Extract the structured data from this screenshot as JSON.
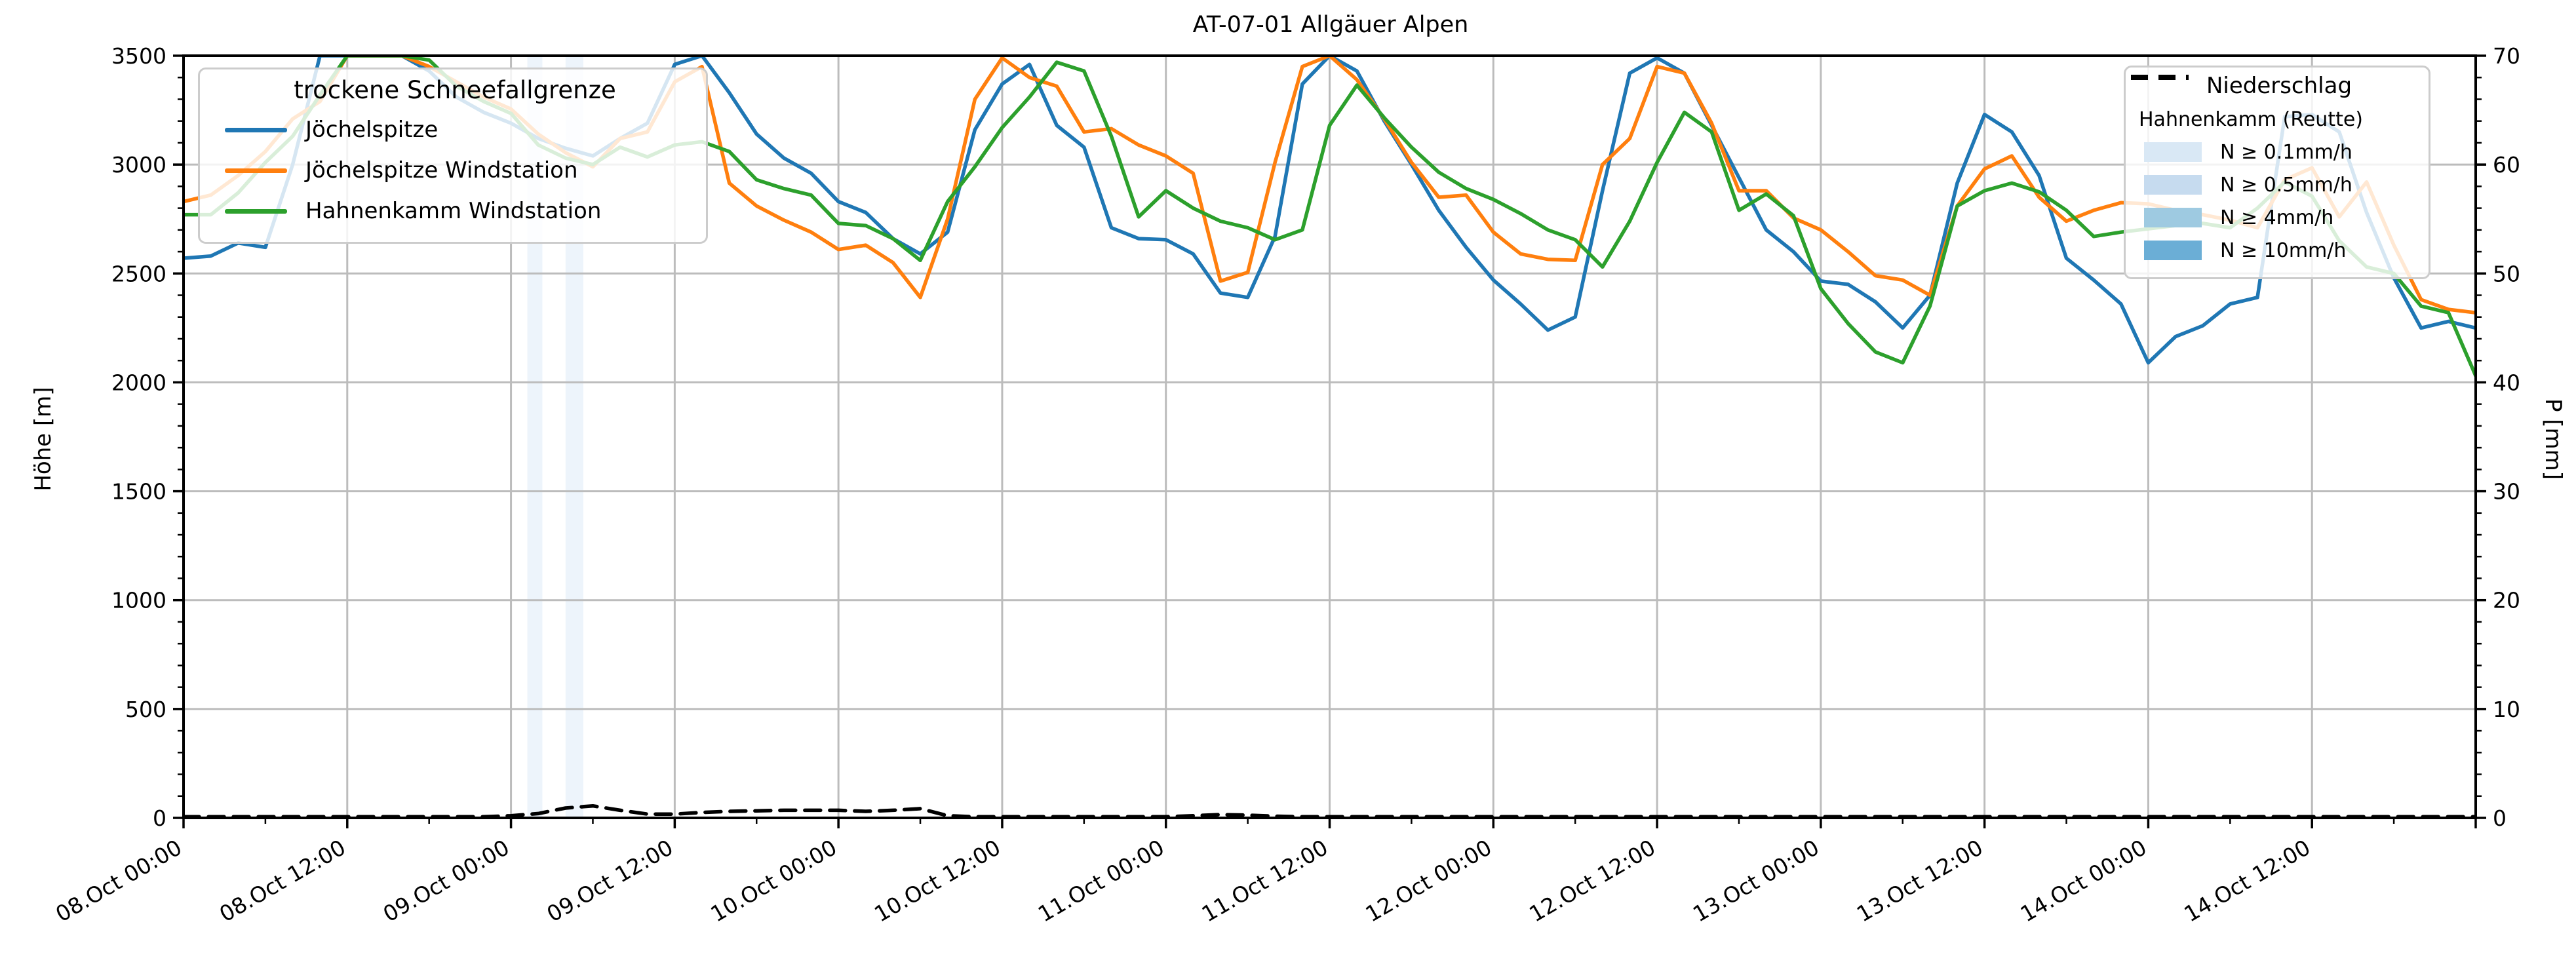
{
  "chart_data": {
    "type": "line",
    "title": "AT-07-01 Allgäuer Alpen",
    "ylabel_left": "Höhe [m]",
    "ylabel_right": "P [mm]",
    "ylim_left": [
      0,
      3500
    ],
    "ylim_right": [
      0,
      70
    ],
    "y_major_step_left": 500,
    "y_minor_step_left": 100,
    "y_major_step_right": 10,
    "y_minor_step_right": 2,
    "x_hours_range": [
      0,
      168
    ],
    "x_major_tick_hours": 12,
    "x_minor_tick_hours": 6,
    "grid": true,
    "x_tick_labels": [
      "08.Oct 00:00",
      "08.Oct 12:00",
      "09.Oct 00:00",
      "09.Oct 12:00",
      "10.Oct 00:00",
      "10.Oct 12:00",
      "11.Oct 00:00",
      "11.Oct 12:00",
      "12.Oct 00:00",
      "12.Oct 12:00",
      "13.Oct 00:00",
      "13.Oct 12:00",
      "14.Oct 00:00",
      "14.Oct 12:00"
    ],
    "y_tick_labels_left": [
      "0",
      "500",
      "1000",
      "1500",
      "2000",
      "2500",
      "3000",
      "3500"
    ],
    "y_tick_labels_right": [
      "0",
      "10",
      "20",
      "30",
      "40",
      "50",
      "60",
      "70"
    ],
    "hours": [
      0,
      2,
      4,
      6,
      8,
      10,
      12,
      14,
      16,
      18,
      20,
      22,
      24,
      26,
      28,
      30,
      32,
      34,
      36,
      38,
      40,
      42,
      44,
      46,
      48,
      50,
      52,
      54,
      56,
      58,
      60,
      62,
      64,
      66,
      68,
      70,
      72,
      74,
      76,
      78,
      80,
      82,
      84,
      86,
      88,
      90,
      92,
      94,
      96,
      98,
      100,
      102,
      104,
      106,
      108,
      110,
      112,
      114,
      116,
      118,
      120,
      122,
      124,
      126,
      128,
      130,
      132,
      134,
      136,
      138,
      140,
      142,
      144,
      146,
      148,
      150,
      152,
      154,
      156,
      158,
      160,
      162,
      164,
      166,
      168
    ],
    "series": [
      {
        "name": "Jöchelspitze",
        "color": "#1f77b4",
        "axis": "left",
        "style": "solid",
        "values": [
          2570,
          2580,
          2640,
          2620,
          3000,
          3500,
          3500,
          3500,
          3500,
          3430,
          3310,
          3240,
          3190,
          3120,
          3075,
          3040,
          3120,
          3190,
          3460,
          3500,
          3330,
          3140,
          3030,
          2960,
          2830,
          2780,
          2660,
          2590,
          2690,
          3160,
          3370,
          3460,
          3180,
          3080,
          2710,
          2660,
          2655,
          2590,
          2410,
          2390,
          2670,
          3370,
          3500,
          3430,
          3200,
          3000,
          2790,
          2620,
          2470,
          2360,
          2240,
          2300,
          2880,
          3420,
          3490,
          3420,
          3180,
          2940,
          2700,
          2600,
          2465,
          2450,
          2370,
          2250,
          2400,
          2915,
          3230,
          3150,
          2950,
          2570,
          2470,
          2360,
          2090,
          2210,
          2260,
          2360,
          2390,
          3220,
          3230,
          3150,
          2780,
          2480,
          2250,
          2280,
          2250
        ]
      },
      {
        "name": "Jöchelspitze Windstation",
        "color": "#ff7f0e",
        "axis": "left",
        "style": "solid",
        "values": [
          2830,
          2860,
          2950,
          3060,
          3210,
          3290,
          3500,
          3500,
          3500,
          3450,
          3380,
          3310,
          3255,
          3140,
          3055,
          2990,
          3120,
          3150,
          3380,
          3450,
          2915,
          2810,
          2745,
          2690,
          2610,
          2630,
          2550,
          2390,
          2750,
          3300,
          3490,
          3400,
          3360,
          3150,
          3165,
          3090,
          3040,
          2960,
          2465,
          2505,
          3010,
          3450,
          3500,
          3390,
          3210,
          3010,
          2850,
          2860,
          2690,
          2590,
          2565,
          2560,
          3000,
          3120,
          3450,
          3420,
          3190,
          2880,
          2880,
          2755,
          2700,
          2600,
          2490,
          2470,
          2400,
          2810,
          2980,
          3040,
          2850,
          2740,
          2790,
          2825,
          2820,
          2790,
          2770,
          2745,
          2710,
          2930,
          2985,
          2760,
          2920,
          2630,
          2380,
          2335,
          2320
        ]
      },
      {
        "name": "Hahnenkamm Windstation",
        "color": "#2ca02c",
        "axis": "left",
        "style": "solid",
        "values": [
          2770,
          2770,
          2870,
          3010,
          3130,
          3320,
          3500,
          3500,
          3500,
          3480,
          3360,
          3290,
          3235,
          3090,
          3030,
          3000,
          3080,
          3035,
          3090,
          3105,
          3060,
          2930,
          2890,
          2860,
          2730,
          2720,
          2660,
          2560,
          2830,
          2990,
          3170,
          3310,
          3470,
          3430,
          3130,
          2760,
          2880,
          2800,
          2740,
          2710,
          2655,
          2700,
          3180,
          3365,
          3215,
          3080,
          2965,
          2890,
          2840,
          2775,
          2700,
          2655,
          2530,
          2740,
          3010,
          3240,
          3150,
          2790,
          2865,
          2765,
          2430,
          2270,
          2140,
          2090,
          2350,
          2810,
          2880,
          2915,
          2875,
          2790,
          2670,
          2690,
          2705,
          2720,
          2730,
          2710,
          2800,
          2920,
          2855,
          2650,
          2530,
          2500,
          2350,
          2320,
          2030
        ]
      },
      {
        "name": "Hahnenkamm (Reutte)",
        "color": "#000000",
        "axis": "right",
        "style": "dashed",
        "values": [
          0.1,
          0.1,
          0.1,
          0.1,
          0.1,
          0.1,
          0.1,
          0.1,
          0.1,
          0.1,
          0.1,
          0.1,
          0.2,
          0.4,
          0.9,
          1.1,
          0.7,
          0.35,
          0.35,
          0.5,
          0.6,
          0.65,
          0.7,
          0.7,
          0.7,
          0.6,
          0.7,
          0.85,
          0.2,
          0.1,
          0.1,
          0.1,
          0.1,
          0.1,
          0.1,
          0.1,
          0.1,
          0.2,
          0.3,
          0.25,
          0.15,
          0.1,
          0.1,
          0.1,
          0.1,
          0.1,
          0.1,
          0.1,
          0.1,
          0.1,
          0.1,
          0.1,
          0.1,
          0.1,
          0.1,
          0.1,
          0.1,
          0.1,
          0.1,
          0.1,
          0.1,
          0.1,
          0.1,
          0.1,
          0.1,
          0.1,
          0.1,
          0.1,
          0.1,
          0.1,
          0.1,
          0.1,
          0.1,
          0.1,
          0.1,
          0.1,
          0.1,
          0.1,
          0.1,
          0.1,
          0.1,
          0.1,
          0.1,
          0.1,
          0.1
        ]
      }
    ],
    "precip_bands": [
      {
        "from_hour": 25.2,
        "to_hour": 26.3,
        "category": "N ≥ 0.1mm/h",
        "color": "#deebf7"
      },
      {
        "from_hour": 28.0,
        "to_hour": 29.3,
        "category": "N ≥ 0.1mm/h",
        "color": "#deebf7"
      }
    ],
    "legend_left": {
      "title": "trockene Schneefallgrenze",
      "items": [
        {
          "label": "Jöchelspitze",
          "color": "#1f77b4"
        },
        {
          "label": "Jöchelspitze Windstation",
          "color": "#ff7f0e"
        },
        {
          "label": "Hahnenkamm Windstation",
          "color": "#2ca02c"
        }
      ]
    },
    "legend_right": {
      "title": "Niederschlag",
      "items": [
        {
          "label": "Hahnenkamm (Reutte)",
          "swatch": "dashed-line",
          "color": "#000000"
        },
        {
          "label": "N ≥ 0.1mm/h",
          "swatch": "rect",
          "color": "#d9e8f5"
        },
        {
          "label": "N ≥ 0.5mm/h",
          "swatch": "rect",
          "color": "#c6dbef"
        },
        {
          "label": "N ≥ 4mm/h",
          "swatch": "rect",
          "color": "#9ecae1"
        },
        {
          "label": "N ≥ 10mm/h",
          "swatch": "rect",
          "color": "#6baed6"
        }
      ]
    },
    "colors": {
      "grid": "#bcbcbc",
      "spine": "#000000",
      "band_fill": "#deebf7"
    }
  }
}
